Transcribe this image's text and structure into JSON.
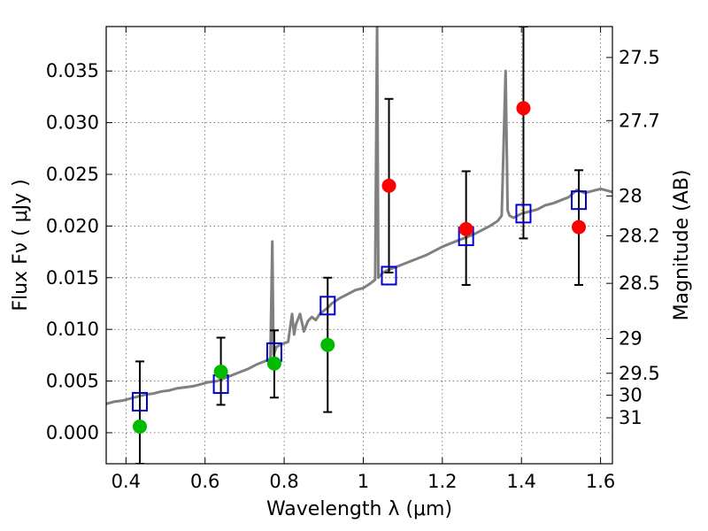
{
  "chart_data": {
    "type": "scatter",
    "xlabel": "Wavelength  λ (μm)",
    "ylabel": "Flux  Fν  ( μJy )",
    "y2label": "Magnitude (AB)",
    "xlim": [
      0.35,
      1.63
    ],
    "ylim": [
      -0.003,
      0.0393
    ],
    "grid": true,
    "x_ticks": [
      0.4,
      0.6,
      0.8,
      1,
      1.2,
      1.4,
      1.6
    ],
    "x_tick_labels": [
      "0.4",
      "0.6",
      "0.8",
      "1",
      "1.2",
      "1.4",
      "1.6"
    ],
    "y_ticks": [
      0.0,
      0.005,
      0.01,
      0.015,
      0.02,
      0.025,
      0.03,
      0.035
    ],
    "y_tick_labels": [
      "0.000",
      "0.005",
      "0.010",
      "0.015",
      "0.020",
      "0.025",
      "0.030",
      "0.035"
    ],
    "mag_ticks": [
      27.5,
      27.7,
      28,
      28.2,
      28.5,
      29,
      29.5,
      30,
      31
    ],
    "mag_tick_labels": [
      "27.5",
      "27.7",
      "28",
      "28.2",
      "28.5",
      "29",
      "29.5",
      "30",
      "31"
    ],
    "colors": {
      "model": "#808080",
      "model_points": "#0000cc",
      "detections": "#00bb00",
      "upper_points": "#ff0000",
      "errorbar": "#000000"
    },
    "series": [
      {
        "kind": "line",
        "color": "#808080",
        "x": [
          0.35,
          0.37,
          0.39,
          0.41,
          0.43,
          0.45,
          0.47,
          0.49,
          0.51,
          0.53,
          0.55,
          0.57,
          0.59,
          0.61,
          0.63,
          0.65,
          0.67,
          0.69,
          0.71,
          0.73,
          0.75,
          0.765,
          0.77,
          0.773,
          0.776,
          0.78,
          0.79,
          0.81,
          0.82,
          0.825,
          0.83,
          0.84,
          0.85,
          0.86,
          0.87,
          0.88,
          0.89,
          0.9,
          0.91,
          0.92,
          0.94,
          0.96,
          0.98,
          1.0,
          1.02,
          1.03,
          1.035,
          1.038,
          1.042,
          1.05,
          1.06,
          1.08,
          1.1,
          1.12,
          1.14,
          1.16,
          1.18,
          1.2,
          1.22,
          1.24,
          1.26,
          1.28,
          1.3,
          1.32,
          1.34,
          1.35,
          1.36,
          1.365,
          1.37,
          1.38,
          1.39,
          1.4,
          1.42,
          1.44,
          1.46,
          1.48,
          1.5,
          1.52,
          1.54,
          1.56,
          1.58,
          1.6,
          1.63
        ],
        "y": [
          0.0028,
          0.003,
          0.0031,
          0.0033,
          0.0035,
          0.0037,
          0.0038,
          0.004,
          0.0041,
          0.0043,
          0.0044,
          0.0045,
          0.0047,
          0.0049,
          0.005,
          0.0053,
          0.0056,
          0.0059,
          0.0062,
          0.0066,
          0.0069,
          0.0072,
          0.0185,
          0.0075,
          0.0078,
          0.0083,
          0.0085,
          0.0088,
          0.0115,
          0.0095,
          0.0105,
          0.0115,
          0.0098,
          0.0108,
          0.0112,
          0.0109,
          0.0115,
          0.0118,
          0.0121,
          0.0125,
          0.013,
          0.0134,
          0.0138,
          0.014,
          0.0145,
          0.0148,
          0.0395,
          0.015,
          0.0152,
          0.0155,
          0.0157,
          0.016,
          0.0163,
          0.0166,
          0.0169,
          0.0172,
          0.0176,
          0.018,
          0.0183,
          0.0186,
          0.0189,
          0.0192,
          0.0196,
          0.02,
          0.0205,
          0.021,
          0.035,
          0.0215,
          0.021,
          0.0208,
          0.021,
          0.0212,
          0.0214,
          0.0216,
          0.022,
          0.0222,
          0.0225,
          0.0228,
          0.0235,
          0.0232,
          0.0234,
          0.0236,
          0.0233
        ]
      },
      {
        "kind": "open-square",
        "color": "#0000cc",
        "x": [
          0.435,
          0.64,
          0.775,
          0.91,
          1.065,
          1.26,
          1.405,
          1.545
        ],
        "y": [
          0.003,
          0.0047,
          0.0078,
          0.0123,
          0.0152,
          0.019,
          0.0212,
          0.0225
        ]
      },
      {
        "kind": "circle",
        "color": "#00bb00",
        "x": [
          0.435,
          0.64,
          0.775,
          0.91
        ],
        "y": [
          0.0006,
          0.0059,
          0.0067,
          0.0085
        ]
      },
      {
        "kind": "circle",
        "color": "#ff0000",
        "x": [
          1.065,
          1.26,
          1.405,
          1.545
        ],
        "y": [
          0.0239,
          0.0197,
          0.0314,
          0.0199
        ]
      },
      {
        "kind": "errorbar",
        "color": "#000000",
        "x": [
          0.435,
          0.64,
          0.775,
          0.91,
          1.065,
          1.26,
          1.405,
          1.545
        ],
        "lo": [
          -0.003,
          0.0027,
          0.0034,
          0.002,
          0.0155,
          0.0143,
          0.0188,
          0.0143
        ],
        "hi": [
          0.0069,
          0.0092,
          0.0099,
          0.015,
          0.0323,
          0.0253,
          0.0393,
          0.0254
        ]
      }
    ]
  }
}
